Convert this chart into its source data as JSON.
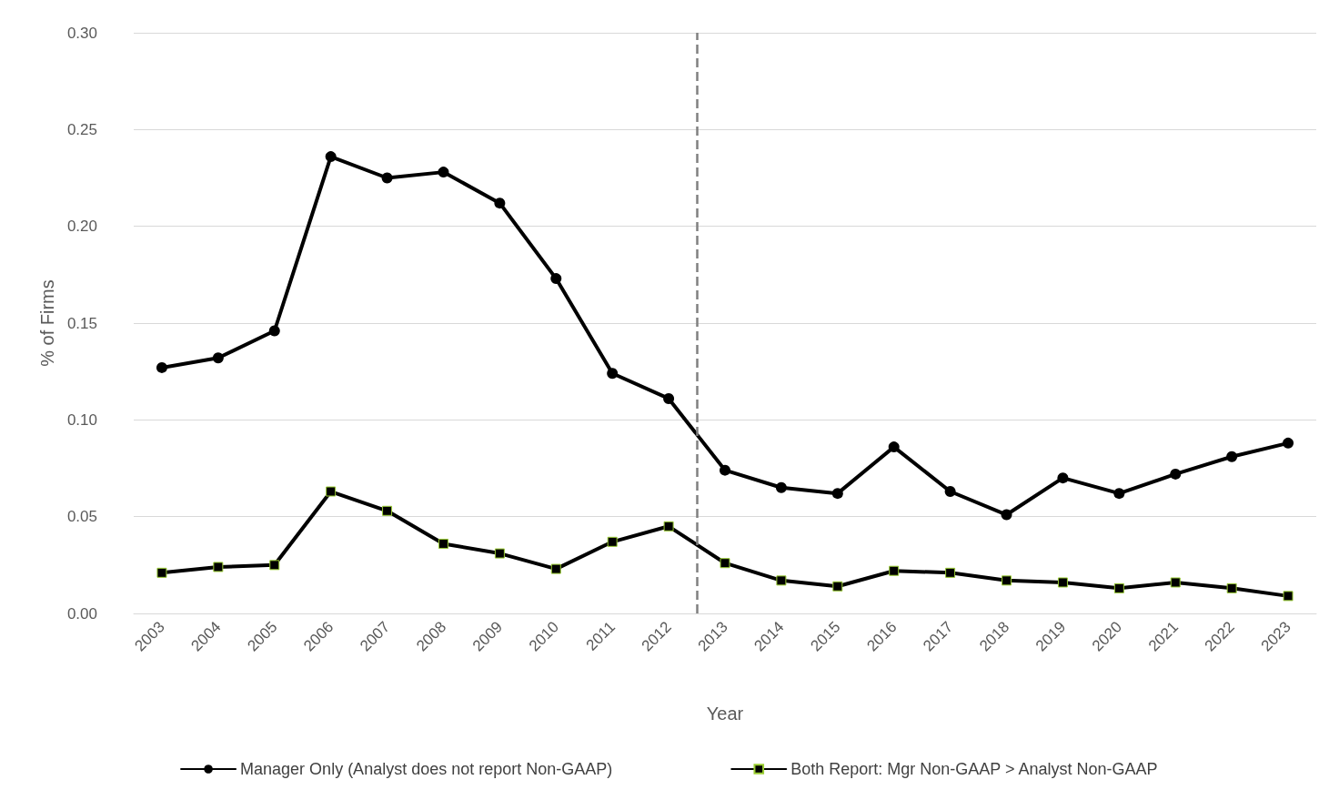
{
  "chart_data": {
    "type": "line",
    "xlabel": "Year",
    "ylabel": "% of Firms",
    "x": [
      2003,
      2004,
      2005,
      2006,
      2007,
      2008,
      2009,
      2010,
      2011,
      2012,
      2013,
      2014,
      2015,
      2016,
      2017,
      2018,
      2019,
      2020,
      2021,
      2022,
      2023
    ],
    "series": [
      {
        "name": "Manager Only (Analyst does not report Non-GAAP)",
        "color": "#000000",
        "marker": "circle",
        "values": [
          0.127,
          0.132,
          0.146,
          0.236,
          0.225,
          0.228,
          0.212,
          0.173,
          0.124,
          0.111,
          0.074,
          0.065,
          0.062,
          0.086,
          0.063,
          0.051,
          0.07,
          0.062,
          0.072,
          0.081,
          0.088
        ]
      },
      {
        "name": "Both Report: Mgr Non-GAAP > Analyst Non-GAAP",
        "color": "#000000",
        "marker": "square",
        "values": [
          0.021,
          0.024,
          0.025,
          0.063,
          0.053,
          0.036,
          0.031,
          0.023,
          0.037,
          0.045,
          0.026,
          0.017,
          0.014,
          0.022,
          0.021,
          0.017,
          0.016,
          0.013,
          0.016,
          0.013,
          0.009
        ]
      }
    ],
    "xlim": [
      2002.5,
      2023.5
    ],
    "xticks": [
      2003,
      2004,
      2005,
      2006,
      2007,
      2008,
      2009,
      2010,
      2011,
      2012,
      2013,
      2014,
      2015,
      2016,
      2017,
      2018,
      2019,
      2020,
      2021,
      2022,
      2023
    ],
    "ylim": [
      0,
      0.3
    ],
    "yticks": [
      {
        "value": 0,
        "label": "0.00"
      },
      {
        "value": 0.05,
        "label": "0.05"
      },
      {
        "value": 0.1,
        "label": "0.10"
      },
      {
        "value": 0.15,
        "label": "0.15"
      },
      {
        "value": 0.2,
        "label": "0.20"
      },
      {
        "value": 0.25,
        "label": "0.25"
      },
      {
        "value": 0.3,
        "label": "0.30"
      }
    ],
    "ref_lines": [
      {
        "axis": "x",
        "value": 2012.5,
        "color": "#808080",
        "line_style": "dashed"
      }
    ],
    "grid": "y",
    "legend": "bottom",
    "line_style": "solid"
  }
}
